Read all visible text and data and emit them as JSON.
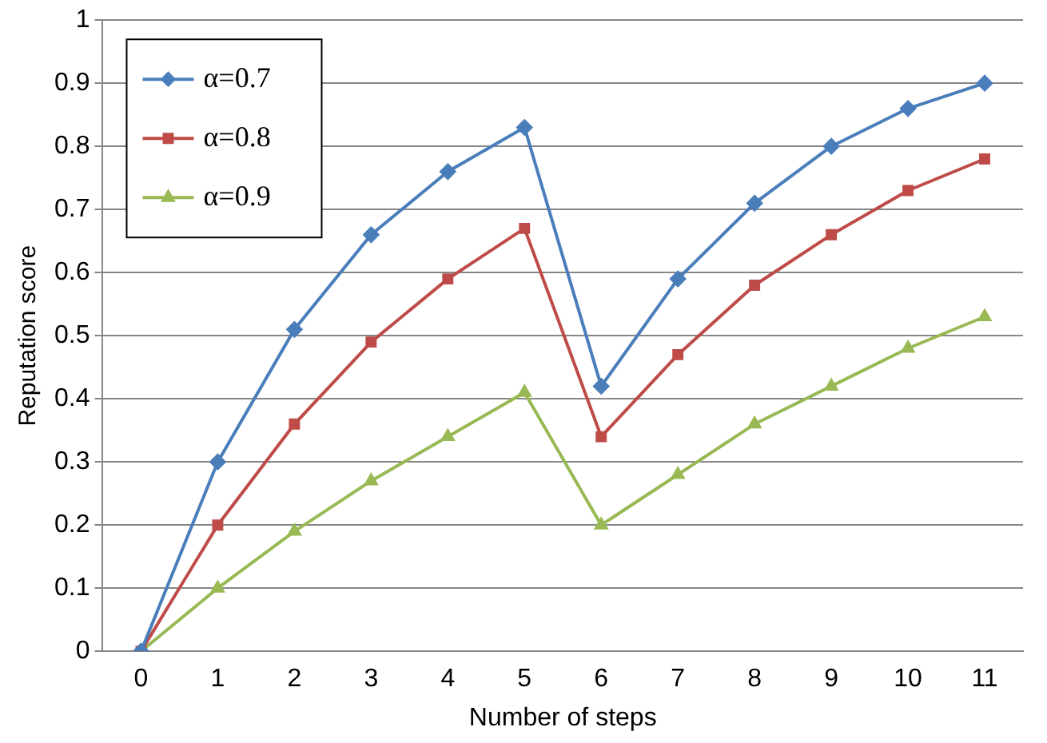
{
  "chart_data": {
    "type": "line",
    "xlabel": "Number of steps",
    "ylabel": "Reputation score",
    "categories": [
      "0",
      "1",
      "2",
      "3",
      "4",
      "5",
      "6",
      "7",
      "8",
      "9",
      "10",
      "11"
    ],
    "ylim": [
      0,
      1
    ],
    "yticks": [
      0,
      0.1,
      0.2,
      0.3,
      0.4,
      0.5,
      0.6,
      0.7,
      0.8,
      0.9,
      1
    ],
    "grid": "y",
    "legend": "top left",
    "line_style": "solid",
    "series": [
      {
        "name": "α=0.7",
        "color": "#4a7ebb",
        "marker": "diamond",
        "values": [
          0,
          0.3,
          0.51,
          0.66,
          0.76,
          0.83,
          0.42,
          0.59,
          0.71,
          0.8,
          0.86,
          0.9
        ]
      },
      {
        "name": "α=0.8",
        "color": "#be4b48",
        "marker": "square",
        "values": [
          0,
          0.2,
          0.36,
          0.49,
          0.59,
          0.67,
          0.34,
          0.47,
          0.58,
          0.66,
          0.73,
          0.78
        ]
      },
      {
        "name": "α=0.9",
        "color": "#98b954",
        "marker": "triangle",
        "values": [
          0,
          0.1,
          0.19,
          0.27,
          0.34,
          0.41,
          0.2,
          0.28,
          0.36,
          0.42,
          0.48,
          0.53
        ]
      }
    ]
  }
}
